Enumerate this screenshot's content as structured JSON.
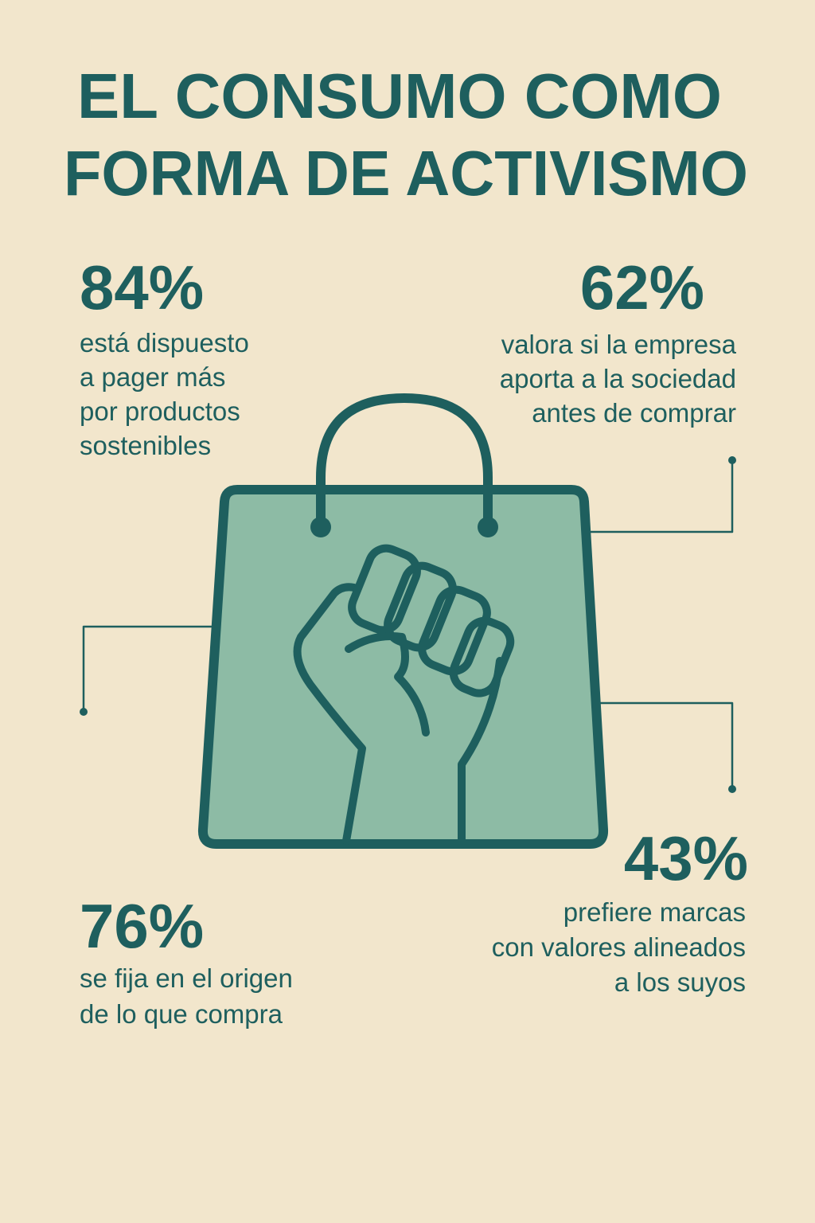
{
  "title": [
    "EL CONSUMO COMO",
    "FORMA DE ACTIVISMO"
  ],
  "stats": [
    {
      "value": "84%",
      "lines": [
        "está dispuesto",
        "a pager más",
        "por productos",
        "sostenibles"
      ]
    },
    {
      "value": "62%",
      "lines": [
        "valora si la empresa",
        "aporta a la sociedad",
        "antes de comprar"
      ]
    },
    {
      "value": "76%",
      "lines": [
        "se fija en el origen",
        "de lo que compra"
      ]
    },
    {
      "value": "43%",
      "lines": [
        "prefiere marcas",
        "con valores alineados",
        "a los suyos"
      ]
    }
  ]
}
